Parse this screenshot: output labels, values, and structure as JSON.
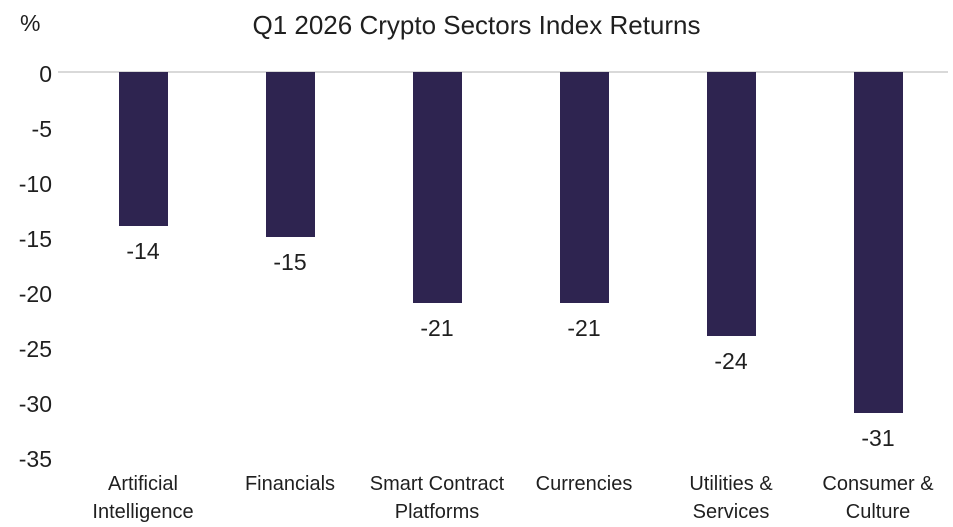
{
  "chart_data": {
    "type": "bar",
    "title": "Q1 2026 Crypto Sectors Index Returns",
    "ylabel": "%",
    "xlabel": "",
    "categories": [
      "Artificial Intelligence",
      "Financials",
      "Smart Contract Platforms",
      "Currencies",
      "Utilities & Services",
      "Consumer & Culture"
    ],
    "values": [
      -14,
      -15,
      -21,
      -21,
      -24,
      -31
    ],
    "data_labels": [
      "-14",
      "-15",
      "-21",
      "-21",
      "-24",
      "-31"
    ],
    "yticks": [
      0,
      -5,
      -10,
      -15,
      -20,
      -25,
      -30,
      -35
    ],
    "ylim": [
      -35,
      0
    ],
    "grid": "zero-baseline-only",
    "legend": "none",
    "bar_color": "#2e2450",
    "zero_line_color": "#d9d9d9",
    "text_color": "#1f1f1f"
  }
}
